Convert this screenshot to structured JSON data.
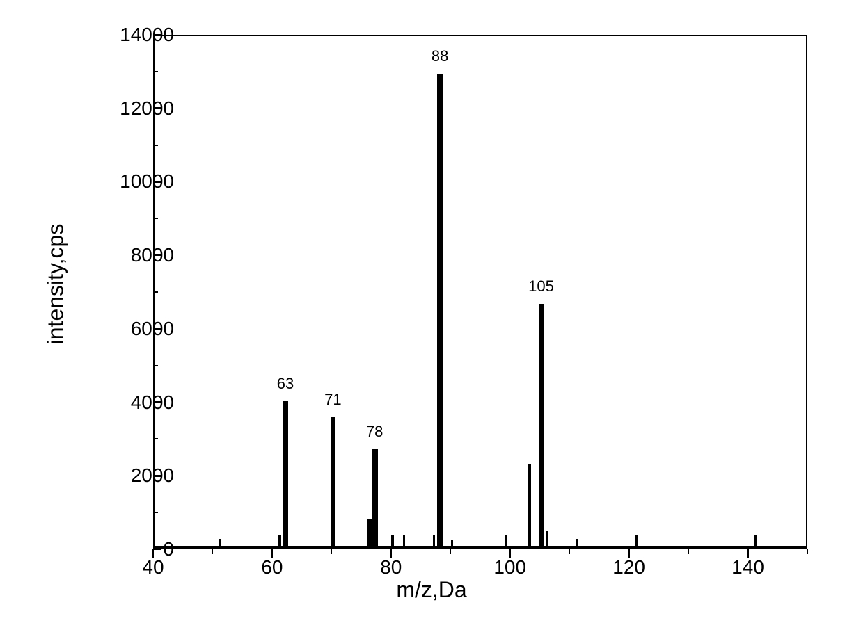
{
  "chart": {
    "type": "mass-spectrum",
    "xlabel": "m/z,Da",
    "ylabel": "intensity,cps",
    "label_fontsize": 32,
    "tick_fontsize": 28,
    "peak_label_fontsize": 22,
    "xlim": [
      40,
      150
    ],
    "ylim": [
      0,
      14000
    ],
    "x_major_ticks": [
      40,
      60,
      80,
      100,
      120,
      140
    ],
    "x_minor_ticks": [
      50,
      70,
      90,
      110,
      130,
      150
    ],
    "y_major_ticks": [
      0,
      2000,
      4000,
      6000,
      8000,
      10000,
      12000,
      14000
    ],
    "y_minor_ticks": [
      1000,
      3000,
      5000,
      7000,
      9000,
      11000,
      13000
    ],
    "background_color": "#ffffff",
    "axis_color": "#000000",
    "peak_color": "#000000",
    "border_width": 2.5,
    "peaks": [
      {
        "mz": 51,
        "intensity": 250,
        "label": null,
        "width": 3
      },
      {
        "mz": 61,
        "intensity": 350,
        "label": null,
        "width": 5
      },
      {
        "mz": 62,
        "intensity": 4000,
        "label": "63",
        "width": 8
      },
      {
        "mz": 70,
        "intensity": 3550,
        "label": "71",
        "width": 7
      },
      {
        "mz": 76.5,
        "intensity": 800,
        "label": null,
        "width": 12
      },
      {
        "mz": 77,
        "intensity": 2680,
        "label": "78",
        "width": 9
      },
      {
        "mz": 80,
        "intensity": 350,
        "label": null,
        "width": 4
      },
      {
        "mz": 82,
        "intensity": 350,
        "label": null,
        "width": 3
      },
      {
        "mz": 87,
        "intensity": 350,
        "label": null,
        "width": 3
      },
      {
        "mz": 88,
        "intensity": 12900,
        "label": "88",
        "width": 8
      },
      {
        "mz": 90,
        "intensity": 200,
        "label": null,
        "width": 3
      },
      {
        "mz": 99,
        "intensity": 350,
        "label": null,
        "width": 3
      },
      {
        "mz": 103,
        "intensity": 2280,
        "label": null,
        "width": 5
      },
      {
        "mz": 105,
        "intensity": 6650,
        "label": "105",
        "width": 7
      },
      {
        "mz": 106,
        "intensity": 450,
        "label": null,
        "width": 3
      },
      {
        "mz": 111,
        "intensity": 250,
        "label": null,
        "width": 3
      },
      {
        "mz": 121,
        "intensity": 350,
        "label": null,
        "width": 3
      },
      {
        "mz": 141,
        "intensity": 350,
        "label": null,
        "width": 3
      }
    ]
  }
}
